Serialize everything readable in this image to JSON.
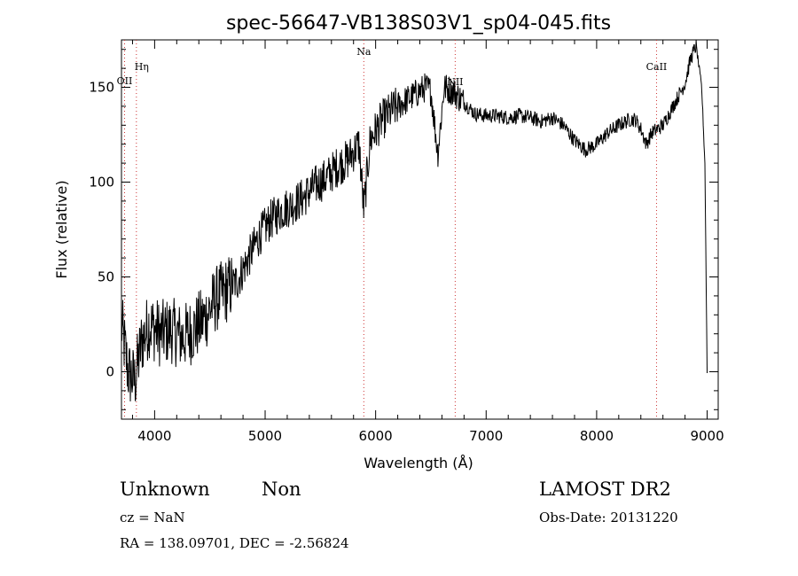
{
  "chart_data": {
    "type": "line",
    "title": "spec-56647-VB138S03V1_sp04-045.fits",
    "xlabel": "Wavelength (Å)",
    "ylabel": "Flux (relative)",
    "xlim": [
      3700,
      9100
    ],
    "ylim": [
      -25,
      175
    ],
    "x_ticks": [
      4000,
      5000,
      6000,
      7000,
      8000,
      9000
    ],
    "y_ticks": [
      0,
      50,
      100,
      150
    ],
    "grid": false,
    "line_color": "#000000",
    "marker_color": "#cc3333",
    "spectral_lines": [
      {
        "label": "Hη",
        "x": 3835
      },
      {
        "label": "OII",
        "x": 3728
      },
      {
        "label": "Na",
        "x": 5893
      },
      {
        "label": "NII",
        "x": 6720
      },
      {
        "label": "CaII",
        "x": 8542
      }
    ],
    "series": [
      {
        "x": [
          3700,
          3760,
          3820,
          3880,
          3950,
          4050,
          4150,
          4250,
          4350,
          4450,
          4550,
          4650,
          4750,
          4850,
          4950,
          5050,
          5150,
          5250,
          5350,
          5450,
          5550,
          5650,
          5750,
          5850,
          5893,
          5950,
          6050,
          6150,
          6250,
          6350,
          6450,
          6500,
          6563,
          6620,
          6700,
          6800,
          6900,
          7000,
          7100,
          7200,
          7300,
          7400,
          7500,
          7600,
          7700,
          7800,
          7900,
          8000,
          8100,
          8200,
          8300,
          8350,
          8400,
          8450,
          8500,
          8600,
          8700,
          8800,
          8850,
          8900,
          8950,
          8980,
          9000
        ],
        "values": [
          25,
          0,
          -5,
          15,
          25,
          20,
          22,
          18,
          22,
          28,
          38,
          43,
          48,
          60,
          72,
          80,
          85,
          88,
          92,
          98,
          102,
          108,
          112,
          120,
          85,
          122,
          132,
          138,
          142,
          146,
          150,
          148,
          115,
          150,
          148,
          142,
          136,
          135,
          135,
          134,
          135,
          134,
          132,
          134,
          130,
          122,
          117,
          120,
          126,
          130,
          133,
          133,
          128,
          120,
          126,
          130,
          141,
          152,
          165,
          172,
          150,
          110,
          0
        ]
      }
    ]
  },
  "info": {
    "class": "Unknown",
    "subclass": "Non",
    "cz": "cz = NaN",
    "coords": "RA = 138.09701, DEC =  -2.56824",
    "survey": "LAMOST DR2",
    "obs_date": "Obs-Date: 20131220"
  }
}
